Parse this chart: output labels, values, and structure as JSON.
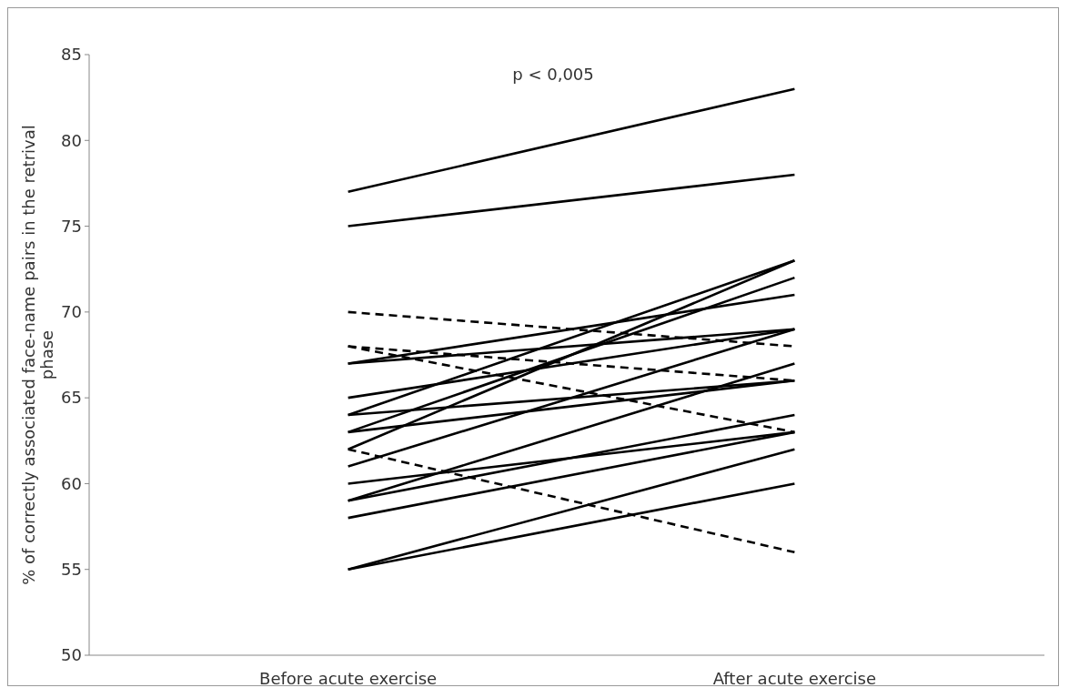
{
  "chart_data": {
    "type": "line",
    "ylabel": "% of correctly associated face-name pairs in the retrival phase",
    "categories": [
      "Before acute exercise",
      "After acute exercise"
    ],
    "ylim": [
      50,
      85
    ],
    "yticks": [
      50,
      55,
      60,
      65,
      70,
      75,
      80,
      85
    ],
    "grid": false,
    "marker": "none",
    "annotations": [
      "p < 0,005"
    ],
    "series": [
      {
        "color": "#000000",
        "values": [
          77,
          83
        ]
      },
      {
        "color": "#000000",
        "values": [
          75,
          78
        ]
      },
      {
        "color": "#000000",
        "values": [
          70,
          68
        ],
        "line_style": "dashed"
      },
      {
        "color": "#000000",
        "values": [
          68,
          66
        ],
        "line_style": "dashed"
      },
      {
        "color": "#000000",
        "values": [
          68,
          63
        ],
        "line_style": "dashed"
      },
      {
        "color": "#000000",
        "values": [
          62,
          56
        ],
        "line_style": "dashed"
      },
      {
        "color": "#000000",
        "values": [
          67,
          71
        ]
      },
      {
        "color": "#000000",
        "values": [
          67,
          69
        ]
      },
      {
        "color": "#000000",
        "values": [
          65,
          69
        ]
      },
      {
        "color": "#000000",
        "values": [
          64,
          73
        ]
      },
      {
        "color": "#000000",
        "values": [
          64,
          66
        ]
      },
      {
        "color": "#000000",
        "values": [
          63,
          72
        ]
      },
      {
        "color": "#000000",
        "values": [
          63,
          66
        ]
      },
      {
        "color": "#000000",
        "values": [
          62,
          73
        ]
      },
      {
        "color": "#000000",
        "values": [
          61,
          69
        ]
      },
      {
        "color": "#000000",
        "values": [
          60,
          63
        ]
      },
      {
        "color": "#000000",
        "values": [
          59,
          67
        ]
      },
      {
        "color": "#000000",
        "values": [
          59,
          64
        ]
      },
      {
        "color": "#000000",
        "values": [
          58,
          63
        ]
      },
      {
        "color": "#000000",
        "values": [
          55,
          62
        ]
      },
      {
        "color": "#000000",
        "values": [
          55,
          60
        ]
      }
    ]
  }
}
